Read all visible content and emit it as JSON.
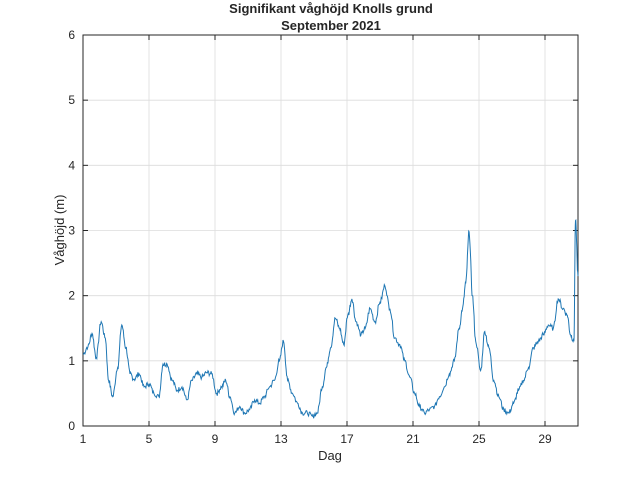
{
  "figure": {
    "title_line1": "Signifikant våghöjd Knolls grund",
    "title_line2": "September 2021"
  },
  "chart_data": {
    "type": "line",
    "title": "Signifikant våghöjd Knolls grund\nSeptember 2021",
    "xlabel": "Dag",
    "ylabel": "Våghöjd (m)",
    "xlim": [
      1,
      31
    ],
    "ylim": [
      0,
      6
    ],
    "xticks": [
      1,
      5,
      9,
      13,
      17,
      21,
      25,
      29
    ],
    "yticks": [
      0,
      1,
      2,
      3,
      4,
      5,
      6
    ],
    "grid": true,
    "legend": "none",
    "line_color": "#1f77b4",
    "series": [
      {
        "x": [
          1.0,
          1.3,
          1.55,
          1.8,
          2.1,
          2.35,
          2.55,
          2.8,
          3.1,
          3.35,
          3.6,
          3.85,
          4.1,
          4.4,
          4.7,
          5.0,
          5.3,
          5.6,
          5.85,
          6.1,
          6.4,
          6.7,
          7.0,
          7.3,
          7.6,
          7.9,
          8.2,
          8.5,
          8.8,
          9.1,
          9.4,
          9.65,
          9.9,
          10.2,
          10.5,
          10.8,
          11.1,
          11.4,
          11.7,
          12.0,
          12.3,
          12.6,
          12.9,
          13.15,
          13.4,
          13.7,
          14.0,
          14.3,
          14.6,
          14.9,
          15.2,
          15.5,
          15.75,
          16.0,
          16.3,
          16.55,
          16.8,
          17.05,
          17.3,
          17.55,
          17.85,
          18.1,
          18.4,
          18.7,
          19.0,
          19.3,
          19.6,
          19.9,
          20.2,
          20.5,
          20.8,
          21.1,
          21.4,
          21.7,
          22.0,
          22.3,
          22.6,
          22.9,
          23.2,
          23.5,
          23.8,
          24.0,
          24.2,
          24.4,
          24.6,
          24.8,
          25.1,
          25.35,
          25.6,
          25.9,
          26.2,
          26.5,
          26.8,
          27.1,
          27.4,
          27.7,
          28.0,
          28.3,
          28.6,
          28.9,
          29.2,
          29.5,
          29.8,
          30.1,
          30.35,
          30.55,
          30.75,
          30.85,
          31.0
        ],
        "y": [
          1.1,
          1.22,
          1.42,
          1.05,
          1.6,
          1.35,
          0.7,
          0.45,
          0.9,
          1.55,
          1.2,
          0.8,
          0.72,
          0.8,
          0.6,
          0.65,
          0.5,
          0.45,
          0.95,
          0.95,
          0.7,
          0.55,
          0.6,
          0.4,
          0.7,
          0.8,
          0.75,
          0.82,
          0.8,
          0.5,
          0.6,
          0.7,
          0.45,
          0.2,
          0.3,
          0.2,
          0.25,
          0.4,
          0.35,
          0.45,
          0.6,
          0.7,
          1.0,
          1.3,
          0.7,
          0.5,
          0.35,
          0.2,
          0.2,
          0.15,
          0.2,
          0.6,
          0.9,
          1.2,
          1.65,
          1.5,
          1.25,
          1.7,
          1.95,
          1.6,
          1.4,
          1.5,
          1.8,
          1.6,
          1.9,
          2.15,
          1.8,
          1.35,
          1.25,
          1.0,
          0.75,
          0.5,
          0.3,
          0.2,
          0.25,
          0.3,
          0.45,
          0.6,
          0.8,
          1.0,
          1.5,
          1.8,
          2.2,
          2.98,
          2.0,
          1.3,
          0.85,
          1.45,
          1.2,
          0.7,
          0.45,
          0.25,
          0.2,
          0.35,
          0.55,
          0.7,
          0.9,
          1.2,
          1.3,
          1.4,
          1.55,
          1.5,
          1.95,
          1.8,
          1.7,
          1.4,
          1.3,
          3.15,
          2.3
        ]
      }
    ]
  }
}
